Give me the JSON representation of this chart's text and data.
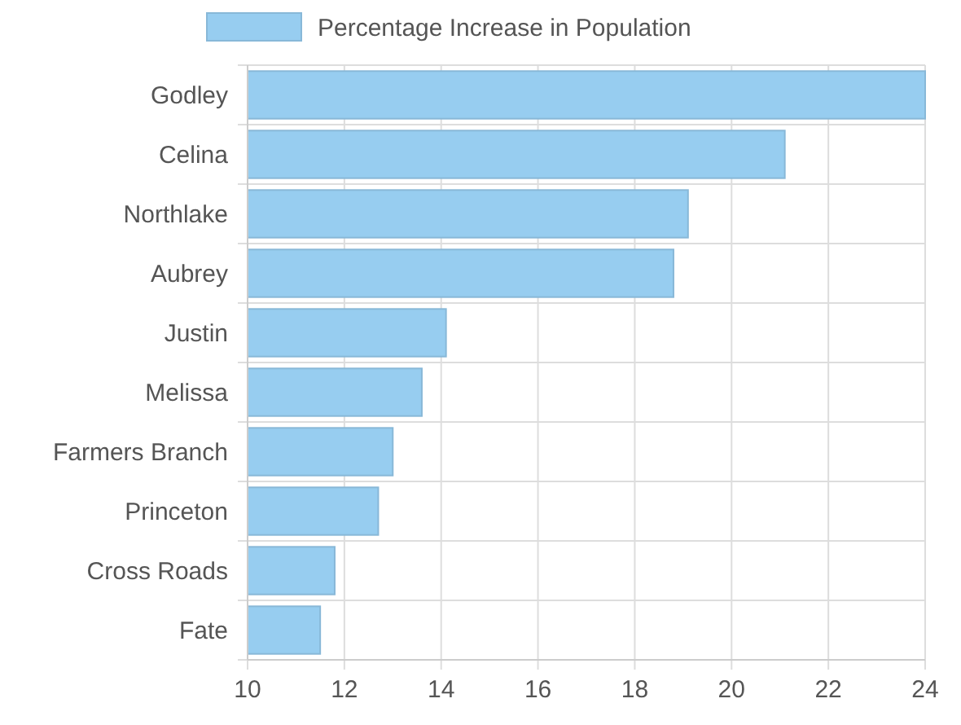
{
  "chart_data": {
    "type": "bar",
    "orientation": "horizontal",
    "categories": [
      "Godley",
      "Celina",
      "Northlake",
      "Aubrey",
      "Justin",
      "Melissa",
      "Farmers Branch",
      "Princeton",
      "Cross Roads",
      "Fate"
    ],
    "series": [
      {
        "name": "Percentage Increase in Population",
        "color": "#97cdf0",
        "values": [
          24,
          21.1,
          19.1,
          18.8,
          14.1,
          13.6,
          13.0,
          12.7,
          11.8,
          11.5
        ]
      }
    ],
    "xlim": [
      10,
      24
    ],
    "xticks": [
      10,
      12,
      14,
      16,
      18,
      20,
      22,
      24
    ],
    "grid": true,
    "legend": "top"
  }
}
